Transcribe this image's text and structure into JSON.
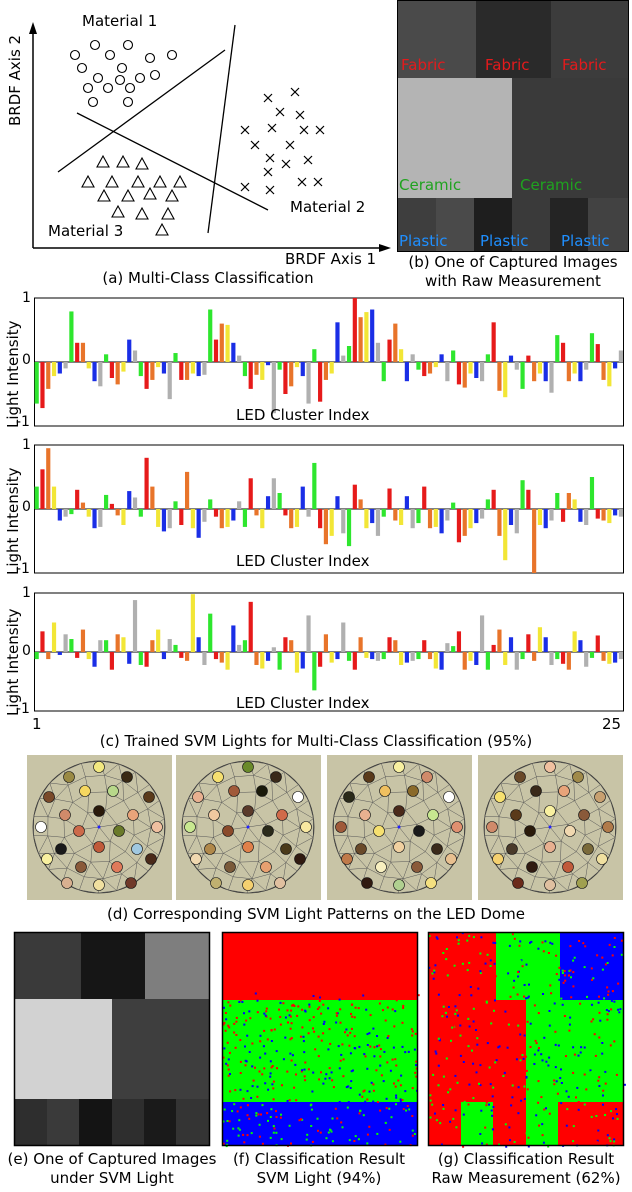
{
  "panel_a": {
    "y_axis_label": "BRDF Axis 2",
    "x_axis_label": "BRDF Axis 1",
    "material1": "Material 1",
    "material2": "Material 2",
    "material3": "Material 3",
    "caption": "(a) Multi-Class Classification"
  },
  "panel_b": {
    "labels": {
      "fabric": "Fabric",
      "ceramic": "Ceramic",
      "plastic": "Plastic"
    },
    "caption_line1": "(b) One of Captured Images",
    "caption_line2": "with Raw Measurement",
    "colors": {
      "fabric": "#e41a1c",
      "ceramic": "#1fa31f",
      "plastic": "#1f8fff"
    }
  },
  "panel_c": {
    "caption": "(c) Trained SVM Lights for Multi-Class Classification (95%)",
    "x_start_label": "1",
    "x_end_label": "25"
  },
  "chart_data": [
    {
      "type": "bar",
      "ylabel": "Light Intensity",
      "xlabel": "LED Cluster Index",
      "ylim": [
        -1,
        1
      ],
      "yticks": [
        "1",
        "0",
        "-1"
      ],
      "colors": [
        "#2ee62e",
        "#e61a1a",
        "#e8742a",
        "#f2e636",
        "#1a2ee6",
        "#b0b0b0"
      ],
      "series_values": [
        -0.65,
        -0.72,
        -0.42,
        -0.22,
        -0.18,
        -0.1,
        0.79,
        0.3,
        0.3,
        -0.1,
        -0.3,
        -0.38,
        0.12,
        -0.25,
        -0.35,
        -0.15,
        0.35,
        0.18,
        -0.22,
        -0.42,
        -0.28,
        -0.08,
        -0.18,
        -0.58,
        0.14,
        -0.28,
        -0.28,
        -0.18,
        -0.22,
        -0.2,
        0.82,
        0.35,
        0.6,
        0.58,
        0.3,
        0.1,
        -0.22,
        -0.42,
        -0.2,
        -0.28,
        -0.05,
        -0.8,
        -0.12,
        -0.5,
        -0.38,
        -0.08,
        -0.22,
        -0.65,
        0.2,
        -0.62,
        -0.28,
        -0.18,
        0.62,
        0.1,
        0.25,
        1.0,
        0.7,
        0.78,
        0.82,
        0.3,
        -0.3,
        0.35,
        0.6,
        0.2,
        -0.3,
        0.12,
        -0.12,
        -0.22,
        -0.18,
        -0.08,
        0.12,
        -0.3,
        0.18,
        -0.35,
        -0.4,
        -0.18,
        -0.25,
        -0.3,
        0.12,
        0.62,
        -0.45,
        -0.55,
        0.1,
        -0.12,
        -0.42,
        0.1,
        -0.3,
        -0.18,
        -0.3,
        -0.48,
        0.42,
        0.3,
        -0.3,
        -0.18,
        -0.3,
        -0.12,
        0.45,
        0.28,
        -0.28,
        -0.38,
        -0.1,
        0.18
      ]
    },
    {
      "type": "bar",
      "ylabel": "Light Intensity",
      "xlabel": "LED Cluster Index",
      "ylim": [
        -1,
        1
      ],
      "yticks": [
        "1",
        "0",
        "-1"
      ],
      "colors": [
        "#2ee62e",
        "#e61a1a",
        "#e8742a",
        "#f2e636",
        "#1a2ee6",
        "#b0b0b0"
      ],
      "series_values": [
        0.35,
        0.62,
        0.95,
        0.35,
        -0.18,
        -0.12,
        -0.08,
        0.3,
        0.1,
        -0.12,
        -0.3,
        -0.28,
        0.22,
        0.08,
        -0.1,
        -0.25,
        0.28,
        0.18,
        -0.12,
        0.8,
        0.35,
        -0.28,
        -0.35,
        -0.3,
        0.12,
        -0.25,
        0.58,
        -0.3,
        -0.45,
        -0.2,
        0.15,
        -0.12,
        -0.3,
        -0.28,
        -0.18,
        0.12,
        -0.28,
        0.48,
        -0.1,
        -0.3,
        0.2,
        0.48,
        0.25,
        -0.1,
        -0.3,
        -0.28,
        0.35,
        -0.12,
        0.72,
        -0.3,
        -0.55,
        -0.42,
        0.2,
        -0.38,
        -0.58,
        0.38,
        0.15,
        -0.3,
        -0.22,
        -0.42,
        -0.12,
        0.32,
        -0.18,
        -0.25,
        0.2,
        -0.3,
        -0.22,
        0.35,
        -0.3,
        -0.28,
        -0.38,
        -0.18,
        0.1,
        -0.52,
        -0.42,
        -0.3,
        -0.22,
        -0.15,
        0.15,
        0.3,
        -0.42,
        -0.8,
        -0.25,
        -0.38,
        0.45,
        0.3,
        -1.0,
        -0.25,
        -0.3,
        -0.18,
        0.25,
        -0.2,
        0.25,
        0.15,
        -0.2,
        -0.25,
        0.5,
        -0.15,
        -0.18,
        -0.22,
        -0.1,
        -0.12
      ]
    },
    {
      "type": "bar",
      "ylabel": "Light Intensity",
      "xlabel": "LED Cluster Index",
      "ylim": [
        -1,
        1
      ],
      "yticks": [
        "1",
        "0",
        "-1"
      ],
      "colors": [
        "#2ee62e",
        "#e61a1a",
        "#e8742a",
        "#f2e636",
        "#1a2ee6",
        "#b0b0b0"
      ],
      "series_values": [
        -0.12,
        0.35,
        -0.12,
        0.5,
        -0.05,
        0.3,
        0.22,
        -0.1,
        0.38,
        -0.12,
        -0.25,
        0.2,
        0.2,
        -0.3,
        0.3,
        0.25,
        -0.2,
        0.88,
        -0.22,
        -0.25,
        0.2,
        0.38,
        -0.12,
        0.22,
        0.12,
        -0.1,
        -0.15,
        0.98,
        0.25,
        -0.22,
        0.65,
        -0.12,
        -0.18,
        -0.3,
        0.45,
        0.12,
        0.2,
        0.85,
        -0.22,
        -0.28,
        -0.15,
        0.08,
        -0.3,
        0.25,
        0.2,
        -0.35,
        -0.28,
        0.62,
        -0.65,
        -0.25,
        0.3,
        -0.18,
        -0.12,
        0.5,
        -0.15,
        -0.3,
        0.25,
        -0.1,
        -0.12,
        -0.15,
        -0.12,
        0.25,
        0.2,
        -0.22,
        -0.18,
        -0.15,
        -0.12,
        0.2,
        -0.12,
        -0.28,
        -0.3,
        0.15,
        0.1,
        0.35,
        -0.3,
        -0.15,
        -0.22,
        0.62,
        -0.3,
        0.12,
        0.38,
        -0.22,
        0.25,
        -0.3,
        -0.12,
        0.3,
        -0.15,
        0.42,
        0.25,
        -0.22,
        -0.12,
        -0.2,
        -0.3,
        0.35,
        0.2,
        -0.25,
        -0.1,
        0.28,
        -0.15,
        -0.2,
        -0.18,
        -0.12
      ]
    }
  ],
  "panel_d": {
    "caption": "(d) Corresponding SVM Light Patterns on the LED Dome",
    "background": "#c8c4a6"
  },
  "panel_e": {
    "caption_line1": "(e) One of Captured Images",
    "caption_line2": "under SVM Light"
  },
  "panel_f": {
    "caption_line1": "(f) Classification Result",
    "caption_line2": "SVM Light (94%)"
  },
  "panel_g": {
    "caption_line1": "(g) Classification Result",
    "caption_line2": "Raw Measurement (62%)"
  },
  "class_colors": {
    "fabric": "#ff0000",
    "ceramic": "#00ff00",
    "plastic": "#0000ff"
  }
}
